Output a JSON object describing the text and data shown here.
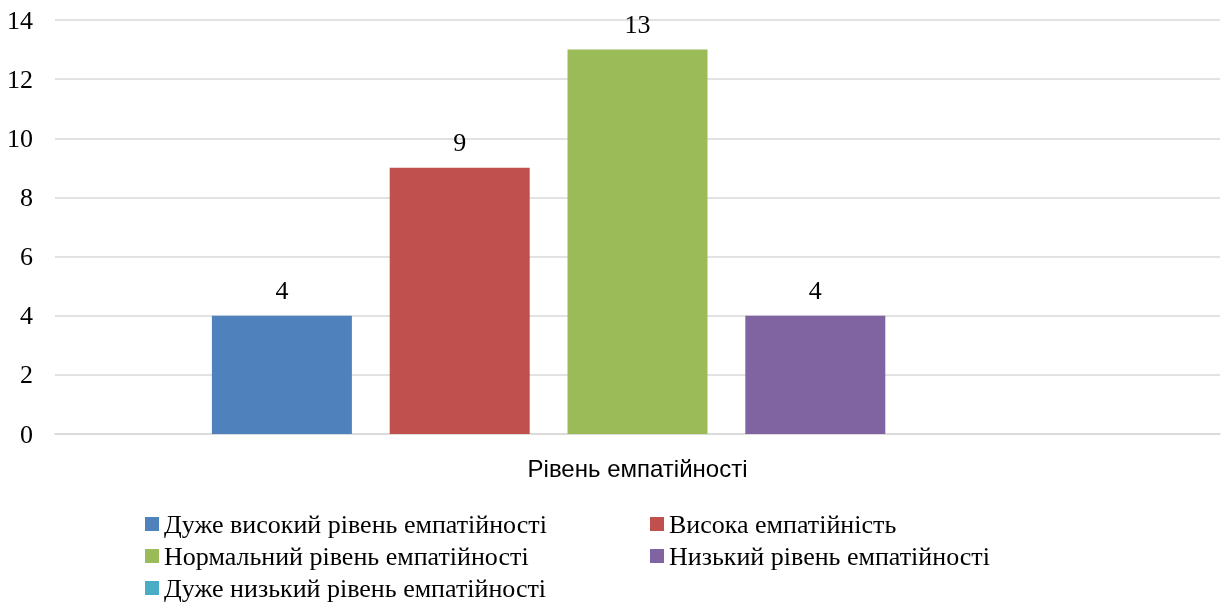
{
  "chart_data": {
    "type": "bar",
    "categories": [
      "Рівень емпатійності"
    ],
    "series": [
      {
        "name": "Дуже високий рівень емпатійності",
        "color": "#4f81bd",
        "values": [
          4
        ]
      },
      {
        "name": "Висока емпатійність",
        "color": "#c0504d",
        "values": [
          9
        ]
      },
      {
        "name": "Нормальний рівень емпатійності",
        "color": "#9bbb59",
        "values": [
          13
        ]
      },
      {
        "name": "Низький рівень емпатійності",
        "color": "#8064a2",
        "values": [
          4
        ]
      },
      {
        "name": "Дуже низький рівень емпатійності",
        "color": "#4bacc6",
        "values": [
          null
        ]
      }
    ],
    "ylim": [
      0,
      14
    ],
    "yticks": [
      0,
      2,
      4,
      6,
      8,
      10,
      12,
      14
    ],
    "grid": "y",
    "legend": "bottom",
    "data_labels": true
  }
}
